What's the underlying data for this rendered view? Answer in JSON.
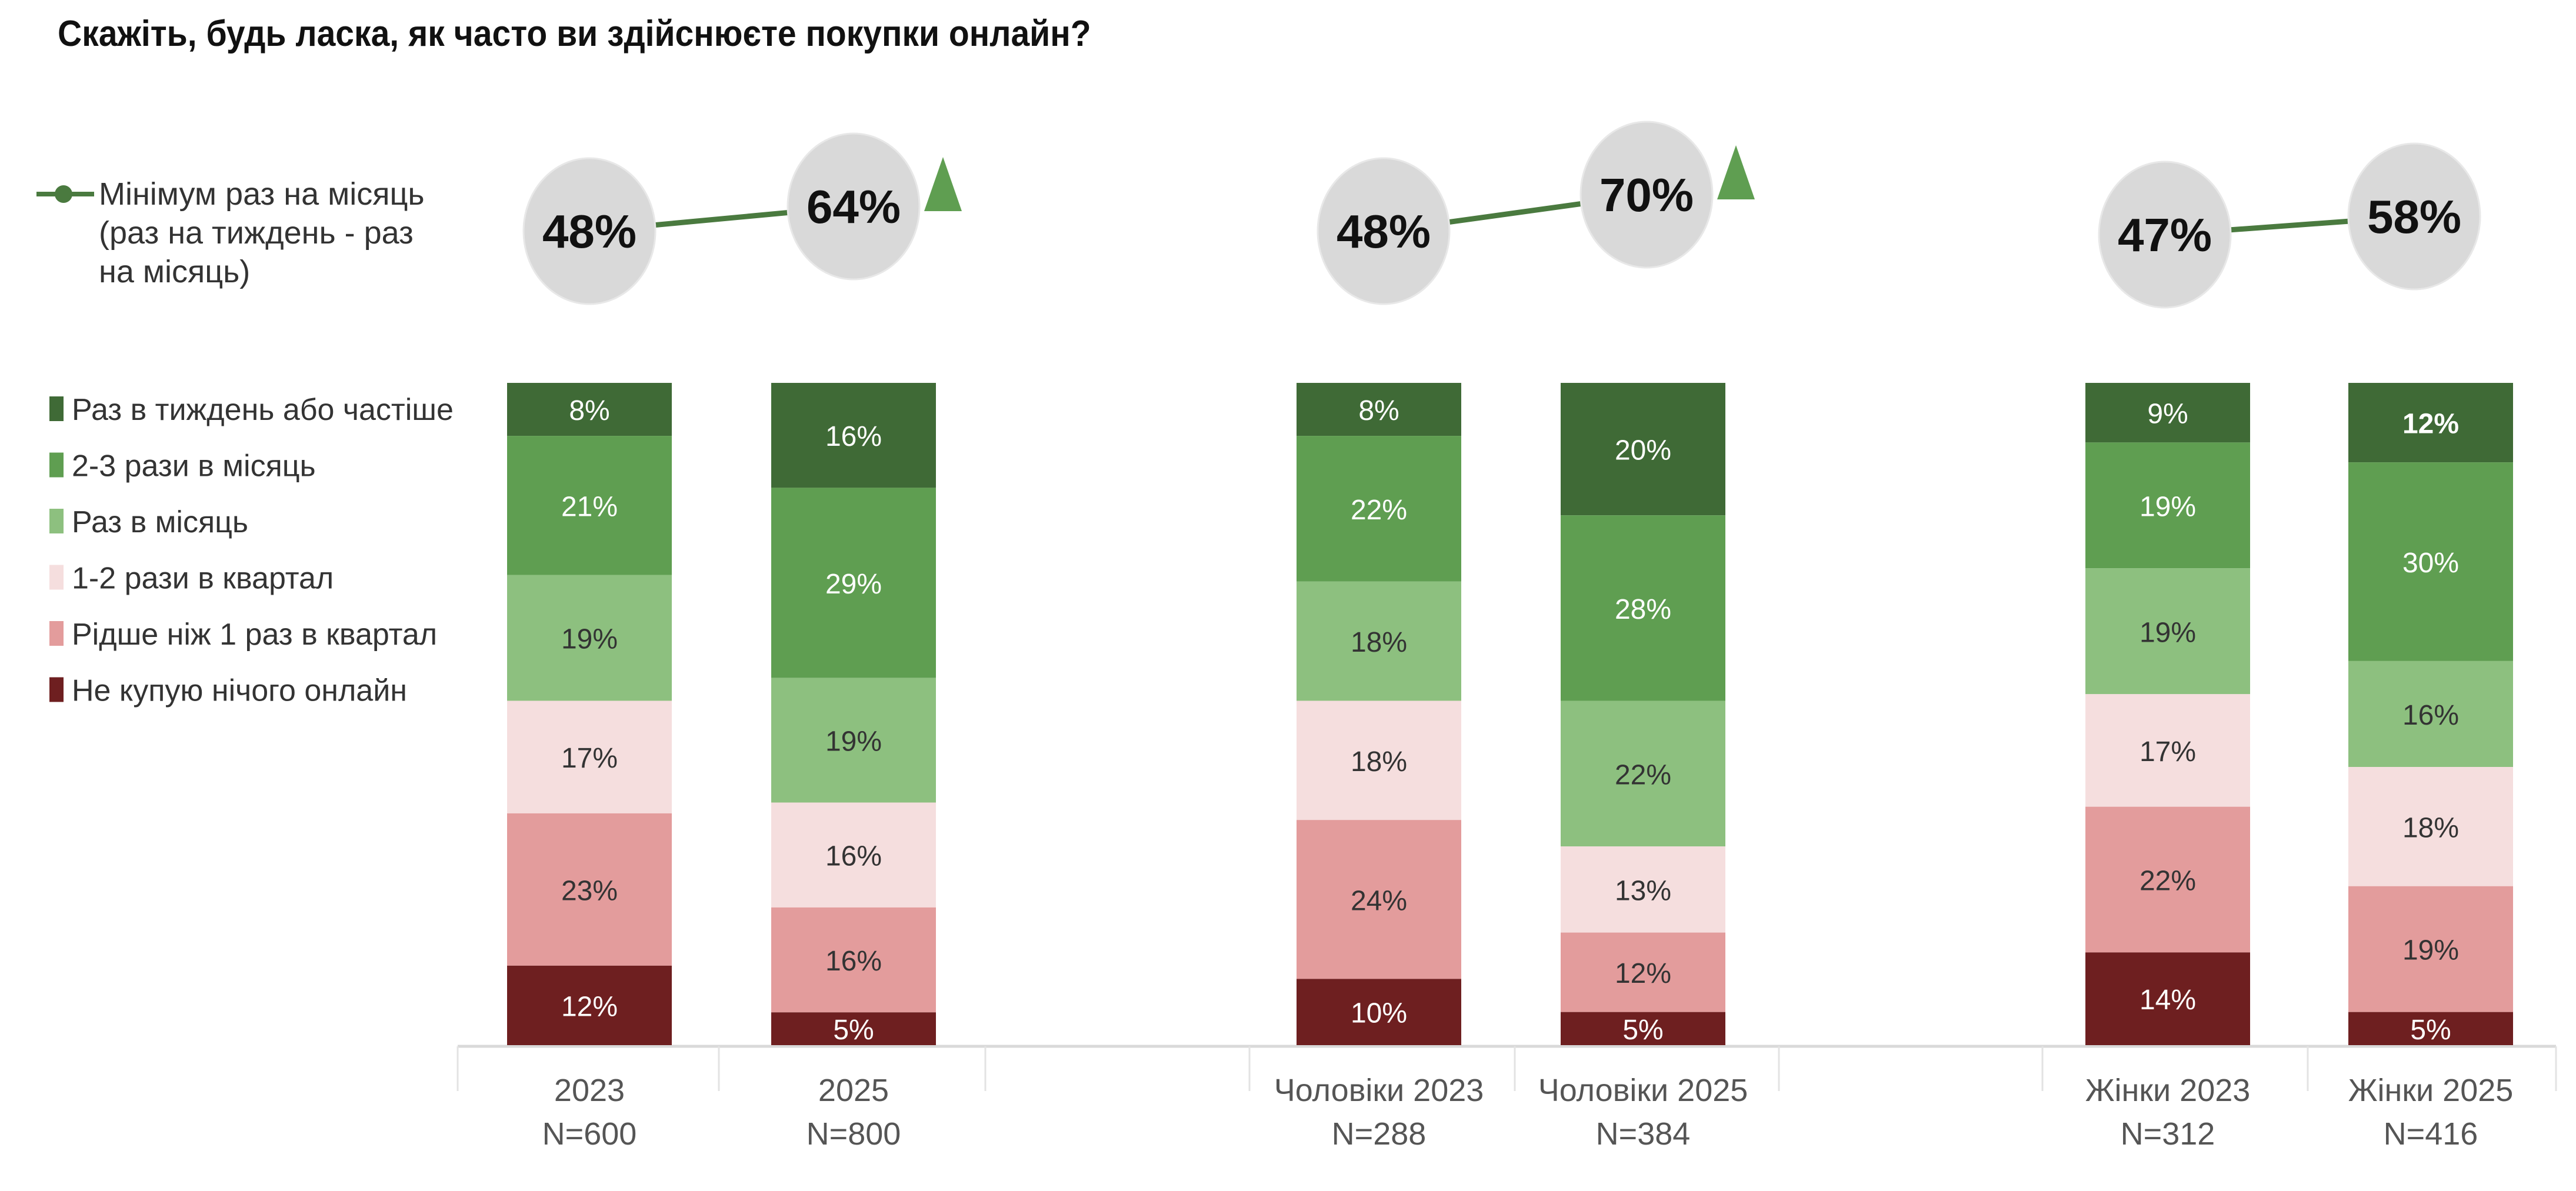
{
  "chart_data": {
    "type": "bar",
    "stacked": true,
    "title": "Скажіть, будь ласка, як часто ви здійснюєте покупки онлайн?",
    "categories": [
      {
        "label": "2023",
        "n": "N=600"
      },
      {
        "label": "2025",
        "n": "N=800"
      },
      {
        "label": "Чоловіки 2023",
        "n": "N=288"
      },
      {
        "label": "Чоловіки 2025",
        "n": "N=384"
      },
      {
        "label": "Жінки  2023",
        "n": "N=312"
      },
      {
        "label": "Жінки 2025",
        "n": "N=416"
      }
    ],
    "series": [
      {
        "name": "Раз в тиждень або частіше",
        "color": "#3f6a36",
        "text_color": "#ffffff",
        "values": [
          8,
          16,
          8,
          20,
          9,
          12
        ]
      },
      {
        "name": "2-3 рази в місяць",
        "color": "#5f9e51",
        "text_color": "#ffffff",
        "values": [
          21,
          29,
          22,
          28,
          19,
          30
        ]
      },
      {
        "name": "Раз в місяць",
        "color": "#8dc07f",
        "text_color": "#333333",
        "values": [
          19,
          19,
          18,
          22,
          19,
          16
        ]
      },
      {
        "name": "1-2 рази в квартал",
        "color": "#f5dede",
        "text_color": "#333333",
        "values": [
          17,
          16,
          18,
          13,
          17,
          18
        ]
      },
      {
        "name": "Рідше ніж 1 раз в квартал",
        "color": "#e39c9c",
        "text_color": "#333333",
        "values": [
          23,
          16,
          24,
          12,
          22,
          19
        ]
      },
      {
        "name": "Не купую нічого онлайн",
        "color": "#6e1f20",
        "text_color": "#ffffff",
        "values": [
          12,
          5,
          10,
          5,
          14,
          5
        ]
      }
    ],
    "line_series": {
      "name_lines": [
        "Мінімум раз на місяць",
        "(раз на тиждень - раз",
        "на місяць)"
      ],
      "color": "#4a7a3f",
      "values": [
        48,
        64,
        48,
        70,
        47,
        58
      ],
      "labels": [
        "48%",
        "64%",
        "48%",
        "70%",
        "47%",
        "58%"
      ],
      "significant_increase": [
        false,
        true,
        false,
        true,
        false,
        false
      ],
      "marker_color": "#5f9e51",
      "bubble_color": "#d9d9d9"
    },
    "ylim": [
      0,
      100
    ],
    "legend_placement": "left"
  }
}
